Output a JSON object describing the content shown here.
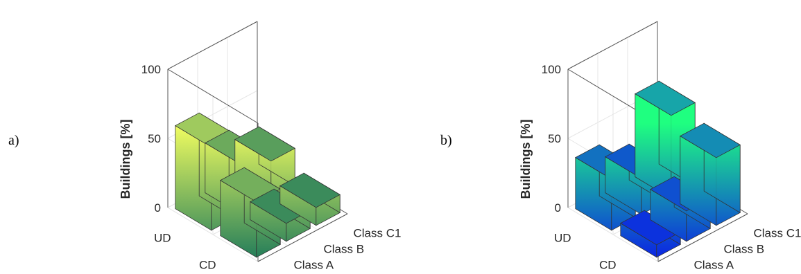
{
  "panels": [
    {
      "label": "a)"
    },
    {
      "label": "b)"
    }
  ],
  "chart_data": [
    {
      "type": "bar3d",
      "ylabel": "Buildings [%]",
      "zlim": [
        0,
        100
      ],
      "zticks": [
        0,
        50,
        100
      ],
      "rows": [
        "UD",
        "CD"
      ],
      "columns": [
        "Class A",
        "Class B",
        "Class C1"
      ],
      "series": [
        {
          "name": "UD",
          "values": [
            60,
            36,
            27
          ]
        },
        {
          "name": "CD",
          "values": [
            40,
            13,
            13
          ]
        }
      ],
      "colormap": [
        "#1f7a5a",
        "#f4ff60"
      ]
    },
    {
      "type": "bar3d",
      "ylabel": "Buildings [%]",
      "zlim": [
        0,
        100
      ],
      "zticks": [
        0,
        50,
        100
      ],
      "rows": [
        "UD",
        "CD"
      ],
      "columns": [
        "Class A",
        "Class B",
        "Class C1"
      ],
      "series": [
        {
          "name": "UD",
          "values": [
            37,
            26,
            60
          ]
        },
        {
          "name": "CD",
          "values": [
            9,
            22,
            49
          ]
        }
      ],
      "colormap": [
        "#0a1ee6",
        "#1fff80"
      ]
    }
  ]
}
